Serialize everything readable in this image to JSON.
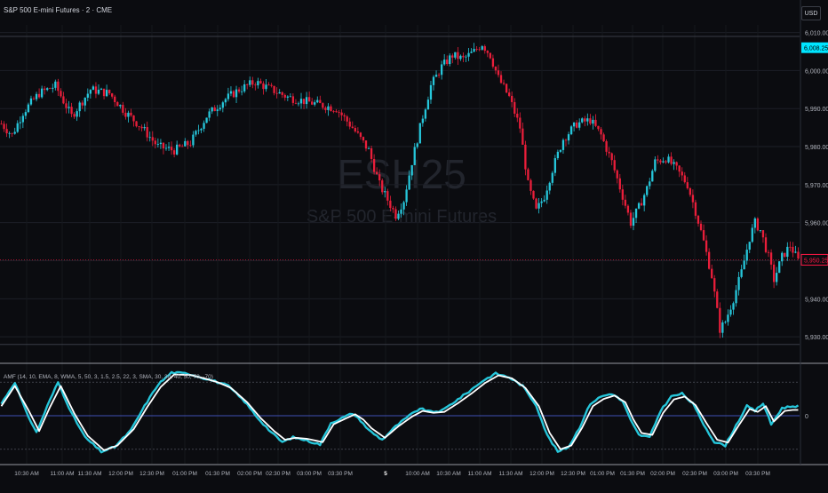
{
  "header": {
    "title": "S&P 500 E-mini Futures · 2 · CME",
    "currency": "USD"
  },
  "watermark": {
    "symbol": "ESH25",
    "name": "S&P 500 E-mini Futures"
  },
  "colors": {
    "background": "#0b0c10",
    "bull": "#26c6da",
    "bear": "#e91e3a",
    "last_price_label": "#00e5ff",
    "current_price_label": "#ff1744",
    "amf_fast": "#26c6da",
    "amf_slow": "#ffffff",
    "zero_line": "#3f51b5"
  },
  "chart_data": [
    {
      "type": "candlestick",
      "title": "S&P 500 E-mini Futures · 2 · CME",
      "x_tick_labels": [
        "10:30 AM",
        "11:00 AM",
        "11:30 AM",
        "12:00 PM",
        "12:30 PM",
        "01:00 PM",
        "01:30 PM",
        "02:00 PM",
        "02:30 PM",
        "03:00 PM",
        "03:30 PM",
        "5",
        "10:00 AM",
        "10:30 AM",
        "11:00 AM",
        "11:30 AM",
        "12:00 PM",
        "12:30 PM",
        "01:00 PM",
        "01:30 PM",
        "02:00 PM",
        "02:30 PM",
        "03:00 PM",
        "03:30 PM"
      ],
      "y_tick_labels": [
        "6,010.00",
        "6,000.00",
        "5,990.00",
        "5,980.00",
        "5,970.00",
        "5,960.00",
        "5,950.00",
        "5,940.00",
        "5,930.00"
      ],
      "ylim": [
        5927,
        6012
      ],
      "price_labels": {
        "high_marker": "6,008.25",
        "current": "5,950.25"
      },
      "y_axis_position": "right",
      "grid": true,
      "anchors": [
        [
          0,
          5986
        ],
        [
          4,
          5983
        ],
        [
          8,
          5989
        ],
        [
          14,
          5994
        ],
        [
          20,
          5996
        ],
        [
          26,
          5988
        ],
        [
          33,
          5995
        ],
        [
          40,
          5994
        ],
        [
          46,
          5989
        ],
        [
          52,
          5985
        ],
        [
          58,
          5980
        ],
        [
          64,
          5979
        ],
        [
          70,
          5981
        ],
        [
          76,
          5988
        ],
        [
          82,
          5992
        ],
        [
          88,
          5995
        ],
        [
          94,
          5997
        ],
        [
          100,
          5995
        ],
        [
          106,
          5993
        ],
        [
          112,
          5992
        ],
        [
          118,
          5991
        ],
        [
          124,
          5990
        ],
        [
          130,
          5985
        ],
        [
          136,
          5979
        ],
        [
          140,
          5970
        ],
        [
          143,
          5966
        ],
        [
          146,
          5962
        ],
        [
          149,
          5966
        ],
        [
          152,
          5976
        ],
        [
          156,
          5988
        ],
        [
          159,
          5996
        ],
        [
          163,
          6001
        ],
        [
          167,
          6004
        ],
        [
          171,
          6003
        ],
        [
          175,
          6005
        ],
        [
          178,
          6007
        ],
        [
          181,
          6004
        ],
        [
          184,
          5998
        ],
        [
          188,
          5993
        ],
        [
          192,
          5985
        ],
        [
          195,
          5970
        ],
        [
          198,
          5963
        ],
        [
          201,
          5967
        ],
        [
          204,
          5974
        ],
        [
          208,
          5982
        ],
        [
          213,
          5986
        ],
        [
          218,
          5987
        ],
        [
          222,
          5983
        ],
        [
          226,
          5976
        ],
        [
          230,
          5967
        ],
        [
          233,
          5960
        ],
        [
          236,
          5964
        ],
        [
          239,
          5969
        ],
        [
          242,
          5976
        ],
        [
          246,
          5977
        ],
        [
          250,
          5974
        ],
        [
          254,
          5970
        ],
        [
          257,
          5963
        ],
        [
          260,
          5955
        ],
        [
          263,
          5946
        ],
        [
          266,
          5932
        ],
        [
          268,
          5934
        ],
        [
          271,
          5940
        ],
        [
          274,
          5947
        ],
        [
          277,
          5956
        ],
        [
          279,
          5960
        ],
        [
          281,
          5958
        ],
        [
          284,
          5951
        ],
        [
          286,
          5945
        ],
        [
          289,
          5951
        ],
        [
          292,
          5954
        ],
        [
          295,
          5950
        ]
      ]
    },
    {
      "type": "line",
      "title": "AMF (14, 10, EMA, 8, WMA, 5, 50, 3, 1.5, 2.5, 22, 3, SMA, 30, 30, 40, 50, 70, -70)",
      "y_tick_labels": [
        "0"
      ],
      "ylim": [
        -100,
        100
      ],
      "zero_line": true,
      "series": [
        {
          "name": "",
          "anchors": [
            [
              0,
              25
            ],
            [
              5,
              70
            ],
            [
              9,
              10
            ],
            [
              13,
              -35
            ],
            [
              17,
              20
            ],
            [
              21,
              70
            ],
            [
              26,
              5
            ],
            [
              31,
              -45
            ],
            [
              37,
              -75
            ],
            [
              42,
              -65
            ],
            [
              48,
              -30
            ],
            [
              53,
              20
            ],
            [
              58,
              65
            ],
            [
              63,
              90
            ],
            [
              69,
              88
            ],
            [
              74,
              80
            ],
            [
              79,
              72
            ],
            [
              84,
              62
            ],
            [
              90,
              30
            ],
            [
              95,
              -5
            ],
            [
              100,
              -35
            ],
            [
              104,
              -55
            ],
            [
              108,
              -45
            ],
            [
              112,
              -50
            ],
            [
              118,
              -60
            ],
            [
              122,
              -15
            ],
            [
              126,
              -5
            ],
            [
              130,
              5
            ],
            [
              133,
              -10
            ],
            [
              136,
              -30
            ],
            [
              141,
              -50
            ],
            [
              146,
              -22
            ],
            [
              151,
              0
            ],
            [
              155,
              15
            ],
            [
              159,
              8
            ],
            [
              163,
              10
            ],
            [
              168,
              30
            ],
            [
              173,
              50
            ],
            [
              178,
              72
            ],
            [
              183,
              88
            ],
            [
              188,
              80
            ],
            [
              193,
              62
            ],
            [
              198,
              22
            ],
            [
              202,
              -40
            ],
            [
              206,
              -75
            ],
            [
              210,
              -65
            ],
            [
              214,
              -25
            ],
            [
              218,
              25
            ],
            [
              222,
              40
            ],
            [
              226,
              46
            ],
            [
              230,
              30
            ],
            [
              233,
              -10
            ],
            [
              236,
              -40
            ],
            [
              240,
              -45
            ],
            [
              244,
              10
            ],
            [
              248,
              40
            ],
            [
              252,
              46
            ],
            [
              256,
              25
            ],
            [
              260,
              -18
            ],
            [
              264,
              -55
            ],
            [
              268,
              -62
            ],
            [
              272,
              -20
            ],
            [
              276,
              20
            ],
            [
              279,
              10
            ],
            [
              282,
              26
            ],
            [
              285,
              -18
            ],
            [
              289,
              16
            ],
            [
              293,
              20
            ]
          ]
        },
        {
          "name": "",
          "anchors": [
            [
              0,
              20
            ],
            [
              5,
              62
            ],
            [
              10,
              12
            ],
            [
              14,
              -32
            ],
            [
              18,
              18
            ],
            [
              22,
              62
            ],
            [
              27,
              5
            ],
            [
              32,
              -42
            ],
            [
              38,
              -72
            ],
            [
              43,
              -62
            ],
            [
              49,
              -28
            ],
            [
              54,
              18
            ],
            [
              59,
              60
            ],
            [
              64,
              86
            ],
            [
              70,
              85
            ],
            [
              75,
              78
            ],
            [
              80,
              70
            ],
            [
              85,
              58
            ],
            [
              91,
              28
            ],
            [
              96,
              -5
            ],
            [
              101,
              -32
            ],
            [
              105,
              -50
            ],
            [
              109,
              -46
            ],
            [
              113,
              -48
            ],
            [
              119,
              -55
            ],
            [
              123,
              -18
            ],
            [
              127,
              -7
            ],
            [
              131,
              3
            ],
            [
              134,
              -8
            ],
            [
              137,
              -26
            ],
            [
              142,
              -46
            ],
            [
              147,
              -22
            ],
            [
              152,
              -2
            ],
            [
              156,
              10
            ],
            [
              160,
              6
            ],
            [
              164,
              8
            ],
            [
              169,
              26
            ],
            [
              174,
              46
            ],
            [
              179,
              68
            ],
            [
              184,
              84
            ],
            [
              189,
              78
            ],
            [
              194,
              58
            ],
            [
              199,
              20
            ],
            [
              203,
              -36
            ],
            [
              207,
              -70
            ],
            [
              211,
              -62
            ],
            [
              215,
              -25
            ],
            [
              219,
              20
            ],
            [
              223,
              35
            ],
            [
              227,
              42
            ],
            [
              231,
              28
            ],
            [
              234,
              -8
            ],
            [
              237,
              -36
            ],
            [
              241,
              -40
            ],
            [
              245,
              6
            ],
            [
              249,
              34
            ],
            [
              253,
              40
            ],
            [
              257,
              22
            ],
            [
              261,
              -15
            ],
            [
              265,
              -50
            ],
            [
              269,
              -56
            ],
            [
              273,
              -20
            ],
            [
              277,
              14
            ],
            [
              280,
              8
            ],
            [
              283,
              20
            ],
            [
              286,
              -12
            ],
            [
              290,
              10
            ],
            [
              293,
              12
            ]
          ]
        }
      ]
    }
  ]
}
